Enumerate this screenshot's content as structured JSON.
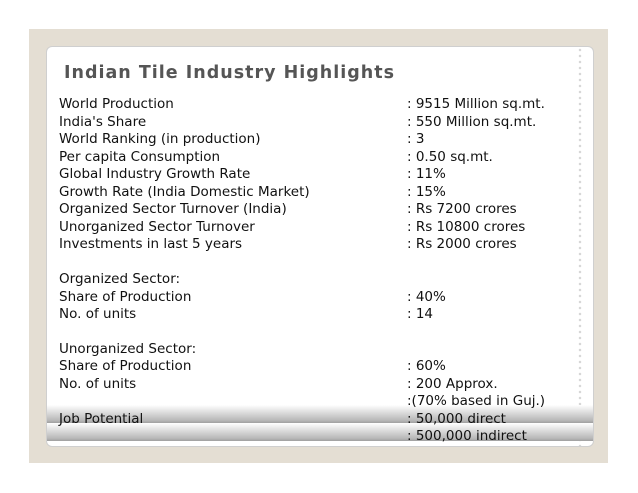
{
  "title": "Indian Tile Industry Highlights",
  "rows": [
    {
      "label": "World Production",
      "value": ":  9515 Million sq.mt."
    },
    {
      "label": "India's Share",
      "value": ": 550 Million sq.mt."
    },
    {
      "label": "World Ranking (in production)",
      "value": ": 3"
    },
    {
      "label": "Per capita Consumption",
      "value": ": 0.50 sq.mt."
    },
    {
      "label": "Global Industry Growth Rate",
      "value": ": 11%"
    },
    {
      "label": "Growth Rate (India Domestic Market)",
      "value": ": 15%"
    },
    {
      "label": "Organized Sector Turnover (India)",
      "value": ": Rs 7200 crores"
    },
    {
      "label": "Unorganized Sector Turnover",
      "value": ": Rs 10800 crores"
    },
    {
      "label": "Investments in last 5 years",
      "value": ": Rs 2000 crores"
    },
    {
      "label": "Organized Sector:",
      "value": ""
    },
    {
      "label": "Share of Production",
      "value": ":  40%"
    },
    {
      "label": "No. of units",
      "value": ": 14"
    },
    {
      "label": "Unorganized Sector:",
      "value": ""
    },
    {
      "label": "Share of Production",
      "value": ": 60%"
    },
    {
      "label": "No. of units",
      "value": ": 200 Approx."
    },
    {
      "label": "",
      "value": ":(70% based in Guj.)"
    },
    {
      "label": "Job Potential",
      "value": ":  50,000 direct"
    },
    {
      "label": "",
      "value": ":  500,000 indirect"
    }
  ]
}
